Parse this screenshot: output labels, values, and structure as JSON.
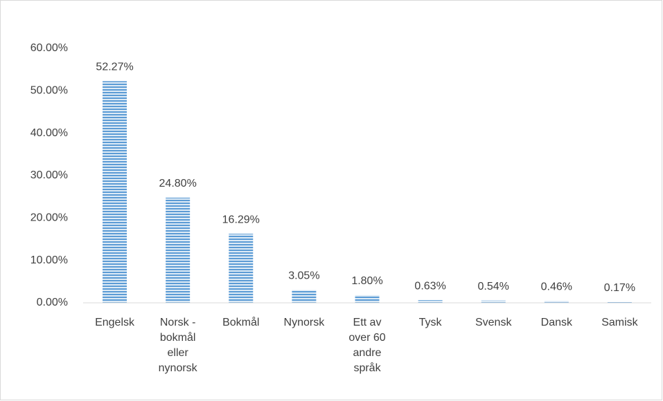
{
  "chart_data": {
    "type": "bar",
    "categories": [
      "Engelsk",
      "Norsk - bokmål eller nynorsk",
      "Bokmål",
      "Nynorsk",
      "Ett av over 60 andre språk",
      "Tysk",
      "Svensk",
      "Dansk",
      "Samisk"
    ],
    "values": [
      52.27,
      24.8,
      16.29,
      3.05,
      1.8,
      0.63,
      0.54,
      0.46,
      0.17
    ],
    "value_labels": [
      "52.27%",
      "24.80%",
      "16.29%",
      "3.05%",
      "1.80%",
      "0.63%",
      "0.54%",
      "0.46%",
      "0.17%"
    ],
    "color": "#5b9bd5",
    "ylim": [
      0,
      60
    ],
    "yticks": [
      {
        "value": 0,
        "label": "0.00%"
      },
      {
        "value": 10,
        "label": "10.00%"
      },
      {
        "value": 20,
        "label": "20.00%"
      },
      {
        "value": 30,
        "label": "30.00%"
      },
      {
        "value": 40,
        "label": "40.00%"
      },
      {
        "value": 50,
        "label": "50.00%"
      },
      {
        "value": 60,
        "label": "60.00%"
      }
    ],
    "grid": false
  }
}
